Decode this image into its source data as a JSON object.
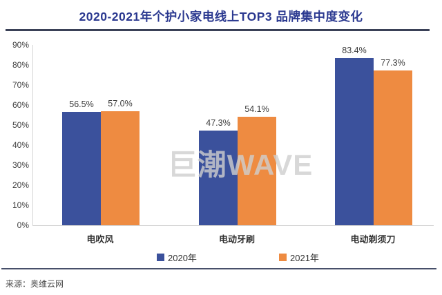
{
  "page": {
    "title": "2020-2021年个护小家电线上TOP3 品牌集中度变化",
    "watermark": "巨潮WAVE",
    "source": "来源：奥维云网"
  },
  "colors": {
    "title_blue": "#2B3990",
    "rule_dark": "#3A4157",
    "bar_2020_blue": "#3B519C",
    "bar_2021_orange": "#EE8B41",
    "axis_gray": "#D4D4D4",
    "text_dark": "#3A3A3A",
    "watermark_gray": "#D8D8D8"
  },
  "chart_data": {
    "type": "bar",
    "title": "2020-2021年个护小家电线上TOP3 品牌集中度变化",
    "categories": [
      "电吹风",
      "电动牙刷",
      "电动剃须刀"
    ],
    "series": [
      {
        "name": "2020年",
        "color": "#3B519C",
        "values": [
          56.5,
          47.3,
          83.4
        ],
        "labels": [
          "56.5%",
          "47.3%",
          "83.4%"
        ]
      },
      {
        "name": "2021年",
        "color": "#EE8B41",
        "values": [
          57.0,
          54.1,
          77.3
        ],
        "labels": [
          "57.0%",
          "54.1%",
          "77.3%"
        ]
      }
    ],
    "xlabel": "",
    "ylabel": "",
    "ylim": [
      0,
      90
    ],
    "yticks": [
      "0%",
      "10%",
      "20%",
      "30%",
      "40%",
      "50%",
      "60%",
      "70%",
      "80%",
      "90%"
    ],
    "grid": false,
    "legend_position": "bottom",
    "value_labels_shown": true,
    "source": "来源：奥维云网"
  }
}
